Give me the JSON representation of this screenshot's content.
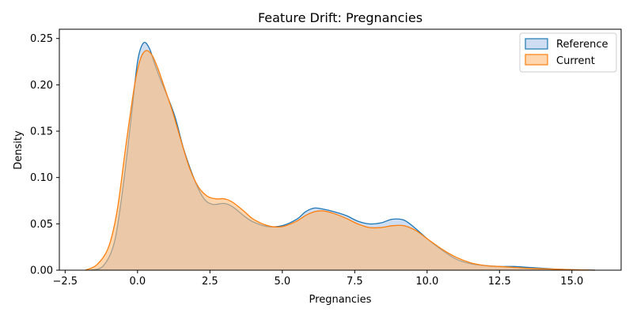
{
  "chart_data": {
    "type": "area",
    "title": "Feature Drift: Pregnancies",
    "xlabel": "Pregnancies",
    "ylabel": "Density",
    "xlim": [
      -2.7,
      16.7
    ],
    "ylim": [
      0,
      0.26
    ],
    "xticks": [
      -2.5,
      0.0,
      2.5,
      5.0,
      7.5,
      10.0,
      12.5,
      15.0
    ],
    "xtick_labels": [
      "−2.5",
      "0.0",
      "2.5",
      "5.0",
      "7.5",
      "10.0",
      "12.5",
      "15.0"
    ],
    "yticks": [
      0.0,
      0.05,
      0.1,
      0.15,
      0.2,
      0.25
    ],
    "ytick_labels": [
      "0.00",
      "0.05",
      "0.10",
      "0.15",
      "0.20",
      "0.25"
    ],
    "legend_position": "top-right",
    "series": [
      {
        "name": "Reference",
        "color": "#1f77b4",
        "fill": "#aec7e8",
        "x": [
          -1.6,
          -1.2,
          -0.8,
          -0.5,
          -0.2,
          0.0,
          0.2,
          0.4,
          0.6,
          0.8,
          1.0,
          1.3,
          1.6,
          2.0,
          2.3,
          2.6,
          3.0,
          3.3,
          3.7,
          4.0,
          4.5,
          5.0,
          5.5,
          5.8,
          6.1,
          6.4,
          6.8,
          7.2,
          7.6,
          8.0,
          8.4,
          8.8,
          9.2,
          9.6,
          10.0,
          10.5,
          11.0,
          11.5,
          12.0,
          12.5,
          13.0,
          13.5,
          14.0,
          14.5,
          15.0,
          15.5,
          15.8
        ],
        "y": [
          0.0,
          0.004,
          0.03,
          0.09,
          0.17,
          0.225,
          0.245,
          0.24,
          0.222,
          0.205,
          0.19,
          0.165,
          0.13,
          0.095,
          0.077,
          0.071,
          0.072,
          0.068,
          0.058,
          0.052,
          0.047,
          0.048,
          0.055,
          0.063,
          0.067,
          0.066,
          0.063,
          0.059,
          0.053,
          0.05,
          0.051,
          0.055,
          0.054,
          0.045,
          0.034,
          0.022,
          0.012,
          0.007,
          0.005,
          0.004,
          0.004,
          0.003,
          0.002,
          0.001,
          0.0005,
          0.0002,
          0.0
        ]
      },
      {
        "name": "Current",
        "color": "#ff7f0e",
        "fill": "#ffbb78",
        "x": [
          -1.8,
          -1.4,
          -1.0,
          -0.7,
          -0.4,
          -0.1,
          0.1,
          0.3,
          0.5,
          0.7,
          0.9,
          1.2,
          1.5,
          1.8,
          2.1,
          2.4,
          2.7,
          3.0,
          3.3,
          3.7,
          4.0,
          4.5,
          5.0,
          5.5,
          5.8,
          6.1,
          6.4,
          6.8,
          7.2,
          7.6,
          8.0,
          8.4,
          8.8,
          9.2,
          9.6,
          10.0,
          10.5,
          11.0,
          11.5,
          12.0,
          12.5,
          13.0,
          13.5,
          14.0,
          14.5,
          15.0,
          15.5,
          15.8
        ],
        "y": [
          0.0,
          0.006,
          0.025,
          0.065,
          0.135,
          0.2,
          0.228,
          0.237,
          0.232,
          0.218,
          0.2,
          0.172,
          0.14,
          0.11,
          0.09,
          0.08,
          0.077,
          0.077,
          0.073,
          0.063,
          0.055,
          0.048,
          0.047,
          0.053,
          0.059,
          0.063,
          0.064,
          0.061,
          0.056,
          0.05,
          0.046,
          0.046,
          0.048,
          0.048,
          0.043,
          0.034,
          0.023,
          0.014,
          0.008,
          0.005,
          0.004,
          0.003,
          0.002,
          0.0015,
          0.001,
          0.0005,
          0.0002,
          0.0
        ]
      }
    ]
  }
}
